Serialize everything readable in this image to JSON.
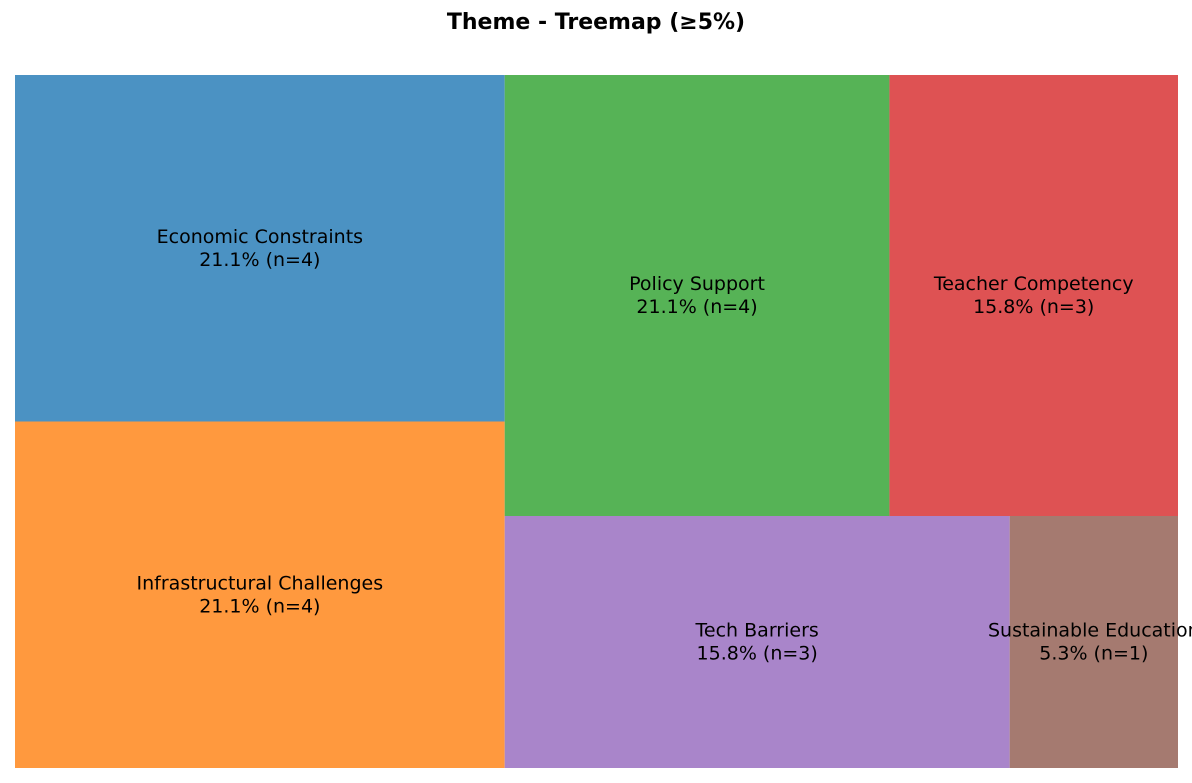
{
  "chart_data": {
    "type": "treemap",
    "title": "Theme - Treemap (≥5%)",
    "items": [
      {
        "name": "Economic Constraints",
        "count": 4,
        "percent": 21.1,
        "label": "21.1% (n=4)",
        "color": "#4b92c3"
      },
      {
        "name": "Infrastructural Challenges",
        "count": 4,
        "percent": 21.1,
        "label": "21.1% (n=4)",
        "color": "#ff993e"
      },
      {
        "name": "Policy Support",
        "count": 4,
        "percent": 21.1,
        "label": "21.1% (n=4)",
        "color": "#56b356"
      },
      {
        "name": "Teacher Competency",
        "count": 3,
        "percent": 15.8,
        "label": "15.8% (n=3)",
        "color": "#de5253"
      },
      {
        "name": "Tech Barriers",
        "count": 3,
        "percent": 15.8,
        "label": "15.8% (n=3)",
        "color": "#a985ca"
      },
      {
        "name": "Sustainable Education",
        "count": 1,
        "percent": 5.3,
        "label": "5.3% (n=1)",
        "color": "#a57a70"
      }
    ]
  }
}
